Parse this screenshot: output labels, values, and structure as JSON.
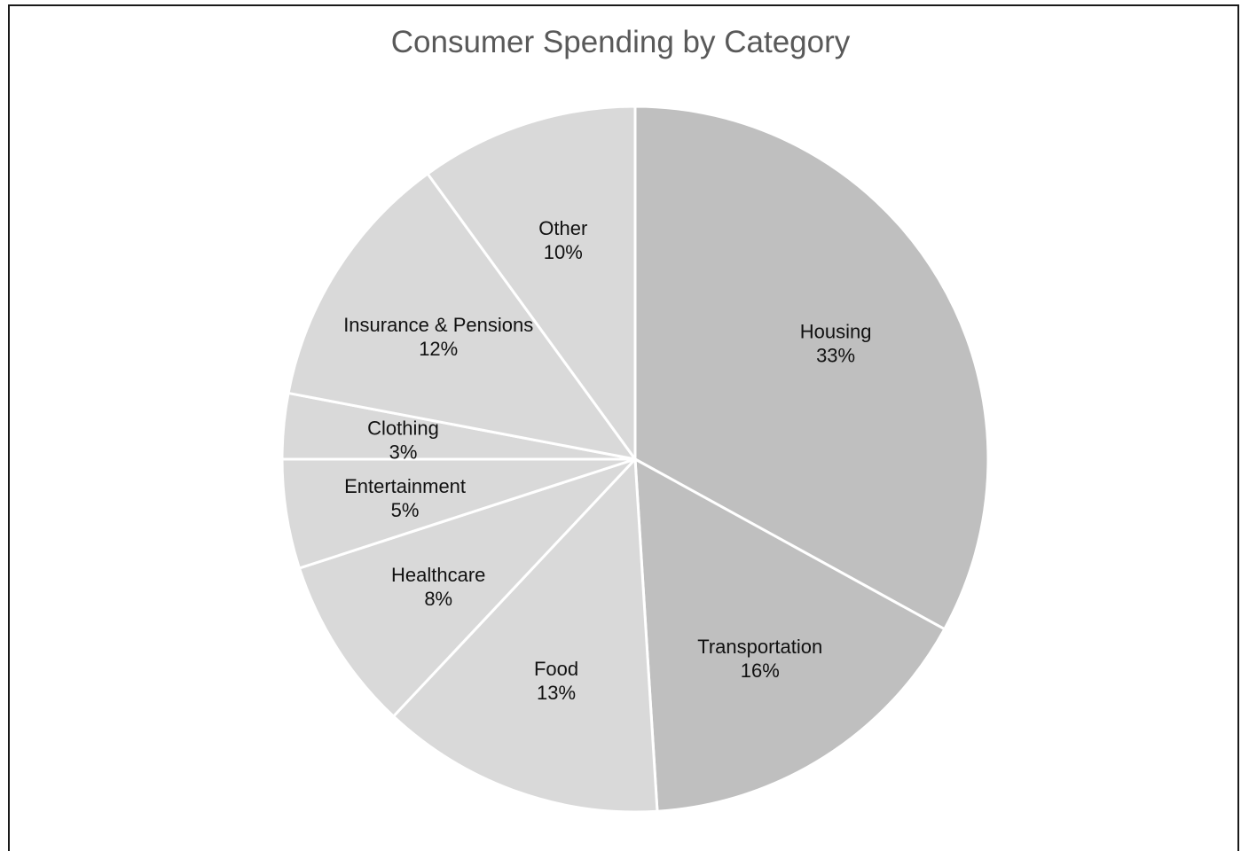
{
  "chart_data": {
    "type": "pie",
    "title": "Consumer Spending by Category",
    "slices": [
      {
        "label": "Housing",
        "value": 33,
        "display": "33%",
        "color": "#bfbfbf"
      },
      {
        "label": "Transportation",
        "value": 16,
        "display": "16%",
        "color": "#bfbfbf"
      },
      {
        "label": "Food",
        "value": 13,
        "display": "13%",
        "color": "#d9d9d9"
      },
      {
        "label": "Healthcare",
        "value": 8,
        "display": "8%",
        "color": "#d9d9d9"
      },
      {
        "label": "Entertainment",
        "value": 5,
        "display": "5%",
        "color": "#d9d9d9"
      },
      {
        "label": "Clothing",
        "value": 3,
        "display": "3%",
        "color": "#d9d9d9"
      },
      {
        "label": "Insurance & Pensions",
        "value": 12,
        "display": "12%",
        "color": "#d9d9d9"
      },
      {
        "label": "Other",
        "value": 10,
        "display": "10%",
        "color": "#d9d9d9"
      }
    ],
    "start": "12 o'clock",
    "direction": "clockwise",
    "separator_color": "#ffffff",
    "legend": "none",
    "data_labels": "inside"
  }
}
